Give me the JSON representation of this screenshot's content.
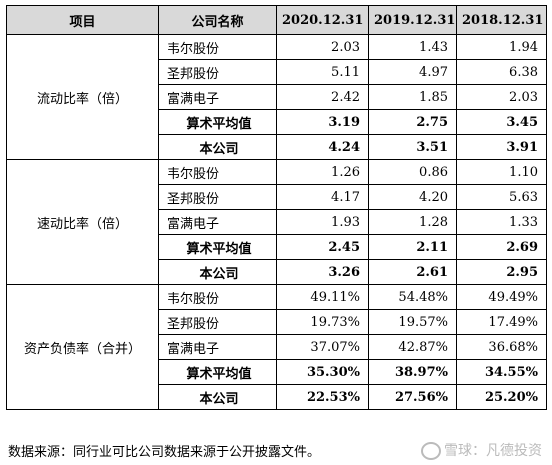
{
  "headers": [
    "项目",
    "公司名称",
    "2020.12.31",
    "2019.12.31",
    "2018.12.31"
  ],
  "groups": [
    {
      "metric": "流动比率（倍）",
      "rows": [
        {
          "company": "韦尔股份",
          "v2020": "2.03",
          "v2019": "1.43",
          "v2018": "1.94"
        },
        {
          "company": "圣邦股份",
          "v2020": "5.11",
          "v2019": "4.97",
          "v2018": "6.38"
        },
        {
          "company": "富满电子",
          "v2020": "2.42",
          "v2019": "1.85",
          "v2018": "2.03"
        },
        {
          "company": "算术平均值",
          "v2020": "3.19",
          "v2019": "2.75",
          "v2018": "3.45"
        },
        {
          "company": "本公司",
          "v2020": "4.24",
          "v2019": "3.51",
          "v2018": "3.91"
        }
      ]
    },
    {
      "metric": "速动比率（倍）",
      "rows": [
        {
          "company": "韦尔股份",
          "v2020": "1.26",
          "v2019": "0.86",
          "v2018": "1.10"
        },
        {
          "company": "圣邦股份",
          "v2020": "4.17",
          "v2019": "4.20",
          "v2018": "5.63"
        },
        {
          "company": "富满电子",
          "v2020": "1.93",
          "v2019": "1.28",
          "v2018": "1.33"
        },
        {
          "company": "算术平均值",
          "v2020": "2.45",
          "v2019": "2.11",
          "v2018": "2.69"
        },
        {
          "company": "本公司",
          "v2020": "3.26",
          "v2019": "2.61",
          "v2018": "2.95"
        }
      ]
    },
    {
      "metric": "资产负债率（合并）",
      "rows": [
        {
          "company": "韦尔股份",
          "v2020": "49.11%",
          "v2019": "54.48%",
          "v2018": "49.49%"
        },
        {
          "company": "圣邦股份",
          "v2020": "19.73%",
          "v2019": "19.57%",
          "v2018": "17.49%"
        },
        {
          "company": "富满电子",
          "v2020": "37.07%",
          "v2019": "42.87%",
          "v2018": "36.68%"
        },
        {
          "company": "算术平均值",
          "v2020": "35.30%",
          "v2019": "38.97%",
          "v2018": "34.55%"
        },
        {
          "company": "本公司",
          "v2020": "22.53%",
          "v2019": "27.56%",
          "v2018": "25.20%"
        }
      ]
    }
  ],
  "source_note": "数据来源：同行业可比公司数据来源于公开披露文件。",
  "watermark": "雪球：凡德投资"
}
